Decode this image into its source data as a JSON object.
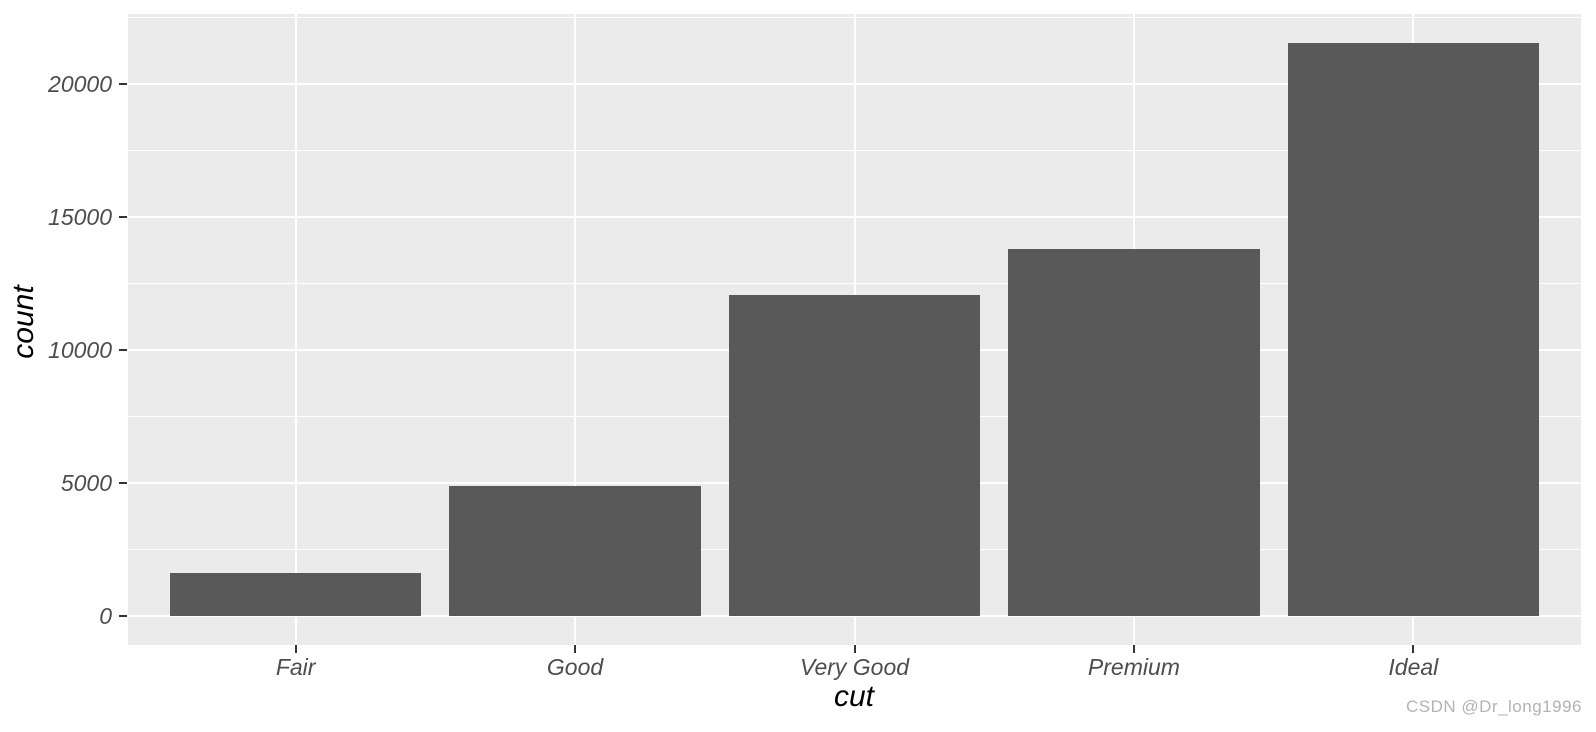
{
  "chart_data": {
    "type": "bar",
    "title": "",
    "categories": [
      "Fair",
      "Good",
      "Very Good",
      "Premium",
      "Ideal"
    ],
    "values": [
      1610,
      4906,
      12082,
      13791,
      21551
    ],
    "xlabel": "cut",
    "ylabel": "count",
    "ylim": [
      -1078,
      22629
    ],
    "yticks": [
      0,
      5000,
      10000,
      15000,
      20000
    ],
    "ytick_labels": [
      "0",
      "5000",
      "10000",
      "15000",
      "20000"
    ],
    "yminor": [
      2500,
      7500,
      12500,
      17500,
      22500
    ],
    "grid": true,
    "legend_position": "none",
    "colors": {
      "bar_fill": "#595959",
      "panel_background": "#EBEBEB",
      "gridline": "#FFFFFF",
      "tick_mark": "#333333",
      "tick_label": "#4D4D4D",
      "axis_title": "#000000",
      "page_background": "#FFFFFF"
    }
  },
  "watermark": {
    "text": "CSDN @Dr_long1996",
    "color": "#B3B3B3"
  }
}
